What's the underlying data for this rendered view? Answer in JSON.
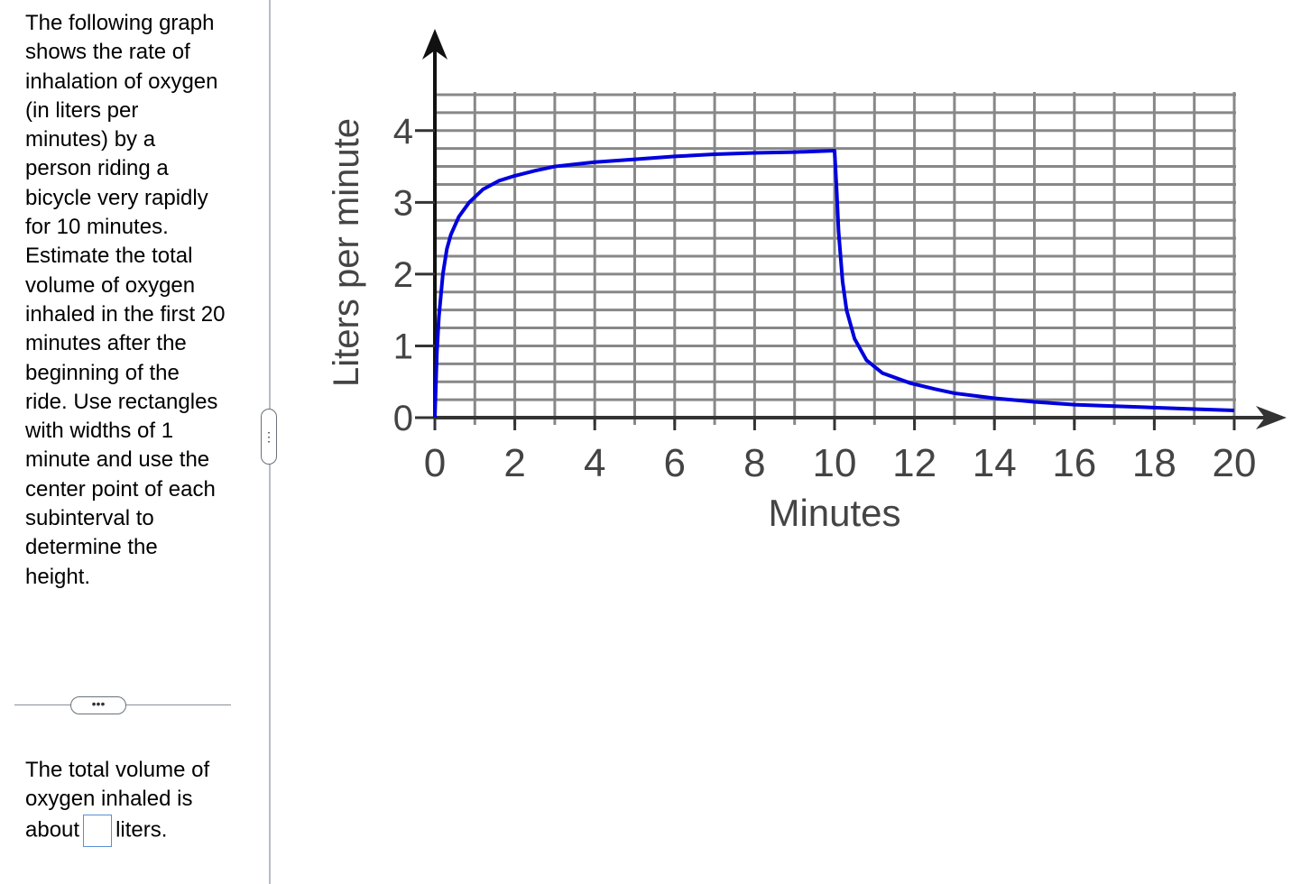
{
  "question": "The following graph shows the rate of inhalation of oxygen (in liters per minutes) by a person riding a bicycle very rapidly for 10 minutes. Estimate the total volume of oxygen inhaled in the first 20 minutes after the beginning of the ride. Use rectangles with widths of 1 minute and use the center point of each subinterval to determine the height.",
  "answer": {
    "prefix": "The total volume of oxygen inhaled is about",
    "suffix": "liters."
  },
  "chart_data": {
    "type": "line",
    "x_label": "Minutes",
    "y_label": "Liters per minute",
    "x": [
      0,
      0.05,
      0.1,
      0.2,
      0.3,
      0.4,
      0.6,
      0.86,
      1.2,
      1.6,
      2,
      2.5,
      3,
      4,
      5,
      6,
      7,
      8,
      9,
      10,
      10.05,
      10.1,
      10.2,
      10.3,
      10.5,
      10.8,
      11.2,
      11.9,
      12.5,
      13,
      14,
      15,
      16,
      17,
      18,
      19,
      20
    ],
    "values": [
      0,
      0.9,
      1.4,
      2.0,
      2.35,
      2.55,
      2.8,
      3.0,
      3.18,
      3.3,
      3.37,
      3.44,
      3.5,
      3.56,
      3.6,
      3.64,
      3.67,
      3.69,
      3.7,
      3.72,
      3.2,
      2.6,
      1.9,
      1.5,
      1.1,
      0.8,
      0.62,
      0.48,
      0.4,
      0.34,
      0.27,
      0.22,
      0.18,
      0.16,
      0.14,
      0.12,
      0.1
    ],
    "color": "#0000dd",
    "xlim": [
      0,
      20
    ],
    "ylim": [
      0,
      4.5
    ],
    "xticks": [
      0,
      2,
      4,
      6,
      8,
      10,
      12,
      14,
      16,
      18,
      20
    ],
    "yticks": [
      0,
      1,
      2,
      3,
      4
    ],
    "xgrid": [
      0,
      1,
      2,
      3,
      4,
      5,
      6,
      7,
      8,
      9,
      10,
      11,
      12,
      13,
      14,
      15,
      16,
      17,
      18,
      19,
      20
    ],
    "ygrid": [
      0.25,
      0.5,
      0.75,
      1,
      1.25,
      1.5,
      1.75,
      2,
      2.25,
      2.5,
      2.75,
      3,
      3.25,
      3.5,
      3.75,
      4,
      4.25,
      4.5
    ],
    "grid": true
  }
}
